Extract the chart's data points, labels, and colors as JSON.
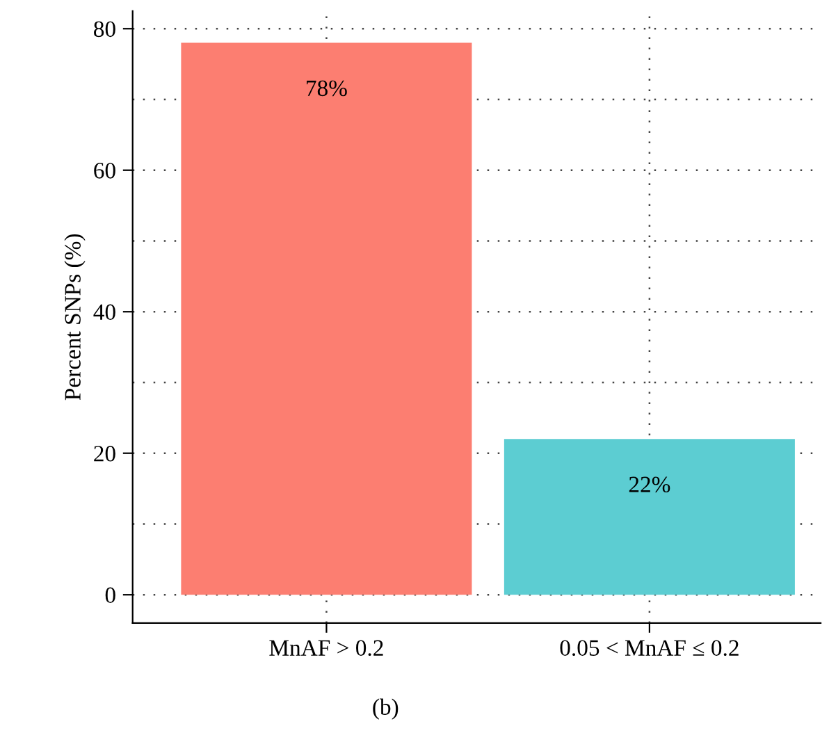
{
  "chart_data": {
    "type": "bar",
    "ylabel": "Percent SNPs (%)",
    "categories": [
      "MnAF > 0.2",
      "0.05 < MnAF ≤ 0.2"
    ],
    "values": [
      78,
      22
    ],
    "colors": [
      "#fc7e71",
      "#5ccdd2"
    ],
    "value_labels": [
      "78%",
      "22%"
    ],
    "ylim": [
      -4,
      82.5
    ],
    "yticks": [
      0,
      20,
      40,
      60,
      80
    ],
    "grid": true,
    "annotations": [
      "(b)"
    ]
  }
}
